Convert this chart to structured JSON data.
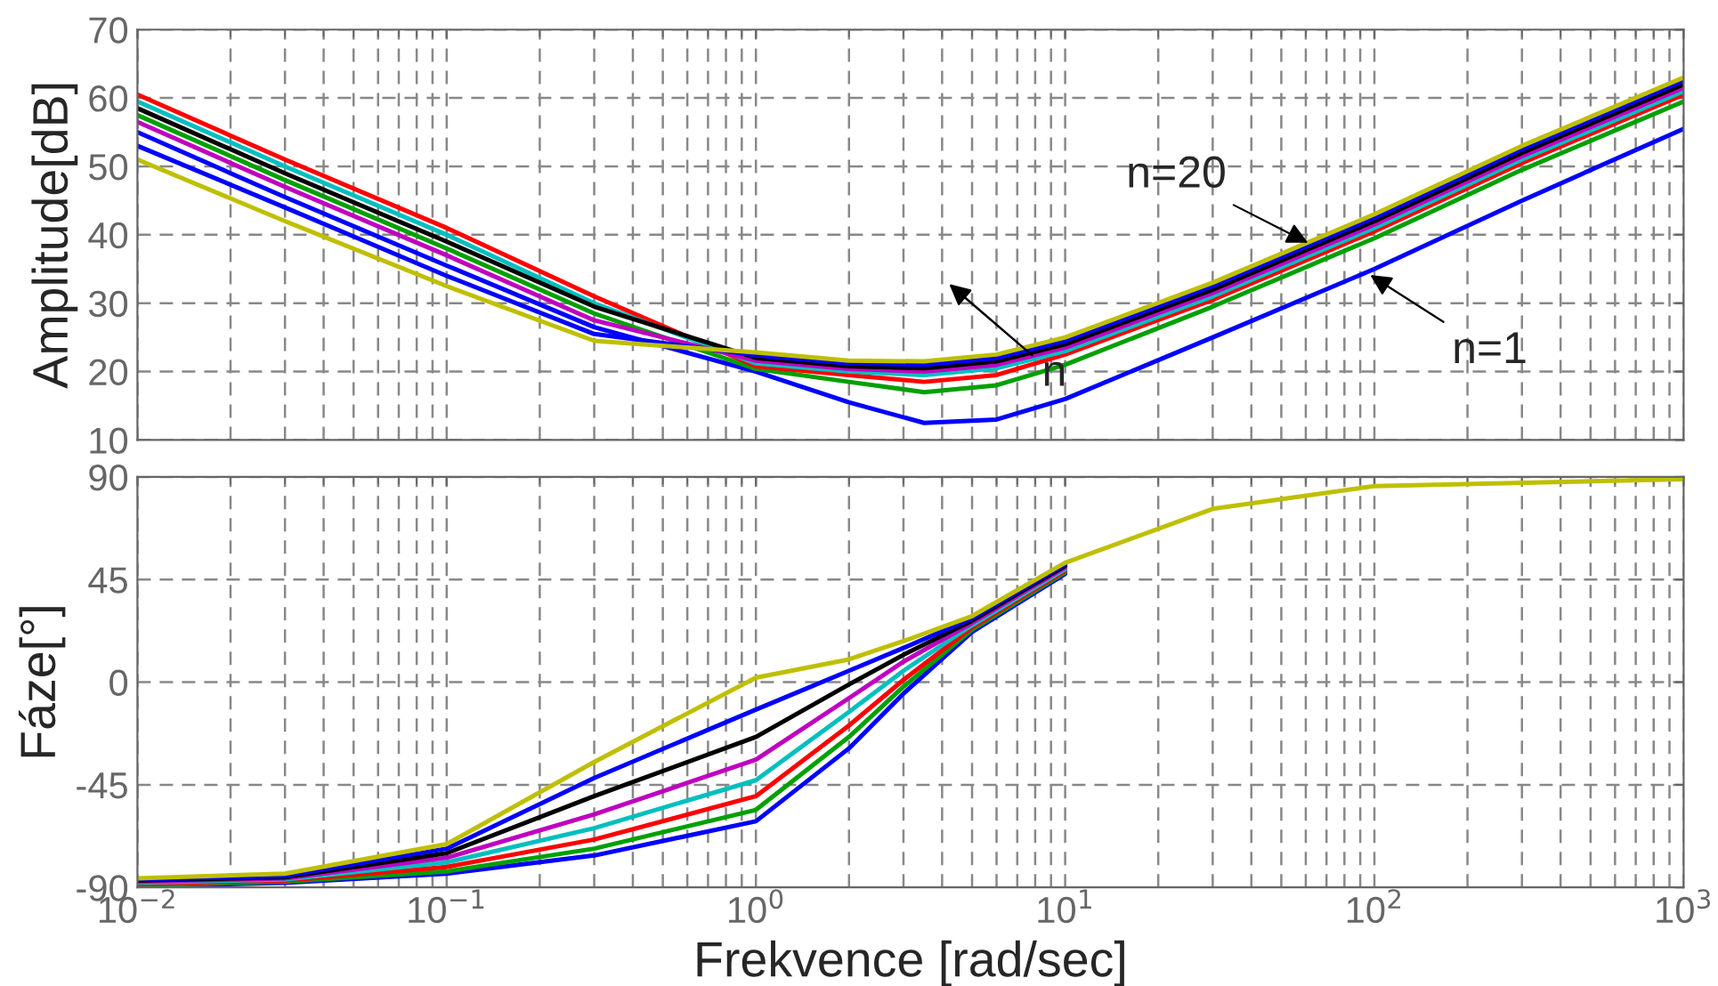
{
  "chart_data": [
    {
      "type": "line",
      "ylabel": "Amplitude[dB]",
      "log": "x",
      "grid": true,
      "tick_labels": "y",
      "marker": "none",
      "line_style": "solid",
      "xlim": [
        0.01,
        1000
      ],
      "xticks": [
        {
          "value": 0.01,
          "label": null
        },
        {
          "value": 0.1,
          "label": null
        },
        {
          "value": 1,
          "label": null
        },
        {
          "value": 10,
          "label": null
        },
        {
          "value": 100,
          "label": null
        },
        {
          "value": 1000,
          "label": null
        }
      ],
      "ylim": [
        10,
        70
      ],
      "yticks": [
        10,
        20,
        30,
        40,
        50,
        60,
        70
      ],
      "x": [
        0.01,
        0.03,
        0.1,
        0.3,
        1,
        2,
        3.5,
        6,
        10,
        30,
        100,
        300,
        1000
      ],
      "series": [
        {
          "color": "#0000ff",
          "values": [
            55,
            45.5,
            35.5,
            26.5,
            20,
            15.5,
            12.5,
            13,
            16,
            25,
            35,
            45,
            55.5
          ]
        },
        {
          "color": "#00a000",
          "values": [
            57.5,
            48,
            38,
            28.5,
            20.4,
            18.5,
            17,
            18,
            21,
            29.5,
            39.5,
            49.5,
            59.5
          ]
        },
        {
          "color": "#ff0000",
          "values": [
            60.5,
            51,
            41,
            31,
            20.8,
            19.5,
            18.5,
            19.5,
            22.5,
            30.5,
            40.5,
            50.5,
            60.5
          ]
        },
        {
          "color": "#00bfbf",
          "values": [
            59.5,
            50,
            40,
            30,
            21.2,
            20,
            19.5,
            20.5,
            23,
            31,
            41,
            51,
            61
          ]
        },
        {
          "color": "#bf00bf",
          "values": [
            56.5,
            47,
            37,
            27.5,
            21.6,
            20.4,
            20,
            21,
            23.5,
            31.5,
            41.5,
            51.5,
            61.5
          ]
        },
        {
          "color": "#000000",
          "values": [
            58.5,
            49,
            39,
            29.5,
            22,
            20.8,
            20.5,
            21.5,
            24,
            32,
            42,
            52,
            62
          ]
        },
        {
          "color": "#0000ff",
          "values": [
            53,
            44,
            34,
            25.5,
            22.4,
            21.2,
            21,
            22,
            24.5,
            32.5,
            42.5,
            52.5,
            62.5
          ]
        },
        {
          "color": "#bfbf00",
          "values": [
            51,
            42,
            32.5,
            24.5,
            22.8,
            21.6,
            21.5,
            22.5,
            25,
            33,
            43,
            53,
            63
          ]
        }
      ],
      "annotations": [
        {
          "text": "n=20",
          "x": 63,
          "y": 38.5
        },
        {
          "text": "n=1",
          "x": 94,
          "y": 34.5
        },
        "n"
      ]
    },
    {
      "type": "line",
      "ylabel": "Fáze[°]",
      "xlabel": "Frekvence [rad/sec]",
      "log": "x",
      "grid": true,
      "marker": "none",
      "line_style": "solid",
      "xlim": [
        0.01,
        1000
      ],
      "xticks": [
        {
          "value": 0.01,
          "label": "10$^{−2}$"
        },
        {
          "value": 0.1,
          "label": "10$^{−1}$"
        },
        {
          "value": 1,
          "label": "10$^{0}$"
        },
        {
          "value": 10,
          "label": "10$^{1}$"
        },
        {
          "value": 100,
          "label": "10$^{2}$"
        },
        {
          "value": 1000,
          "label": "10$^{3}$"
        }
      ],
      "ylim": [
        -90,
        90
      ],
      "yticks": [
        -90,
        -45,
        0,
        45,
        90
      ],
      "x": [
        0.01,
        0.03,
        0.1,
        0.3,
        1,
        2,
        3,
        5,
        10,
        30,
        100,
        1000
      ],
      "series": [
        {
          "color": "#0000ff",
          "values": [
            -89.5,
            -88,
            -84,
            -76,
            -61,
            -29,
            -5,
            22,
            47.5,
            null,
            null,
            null
          ]
        },
        {
          "color": "#00a000",
          "values": [
            -89,
            -87.5,
            -83,
            -73,
            -56,
            -24,
            -2,
            23,
            48.2,
            null,
            null,
            null
          ]
        },
        {
          "color": "#ff0000",
          "values": [
            -88.5,
            -87,
            -81,
            -69,
            -50,
            -19,
            1,
            24,
            48.9,
            null,
            null,
            null
          ]
        },
        {
          "color": "#00bfbf",
          "values": [
            -88,
            -86.5,
            -79,
            -64,
            -43,
            -13,
            5,
            25,
            49.6,
            null,
            null,
            null
          ]
        },
        {
          "color": "#bf00bf",
          "values": [
            -87.5,
            -86,
            -77,
            -58,
            -34,
            -7,
            9,
            26,
            50.3,
            null,
            null,
            null
          ]
        },
        {
          "color": "#000000",
          "values": [
            -87,
            -85.5,
            -75,
            -50,
            -24,
            -1,
            12,
            27,
            51,
            null,
            null,
            null
          ]
        },
        {
          "color": "#0000ff",
          "values": [
            -86.5,
            -85,
            -73,
            -42,
            -12,
            5,
            15,
            28,
            51.7,
            null,
            null,
            null
          ]
        },
        {
          "color": "#bfbf00",
          "values": [
            -86,
            -84,
            -71,
            -35,
            2,
            10,
            18,
            29,
            52.4,
            76,
            86,
            89
          ]
        }
      ]
    }
  ]
}
